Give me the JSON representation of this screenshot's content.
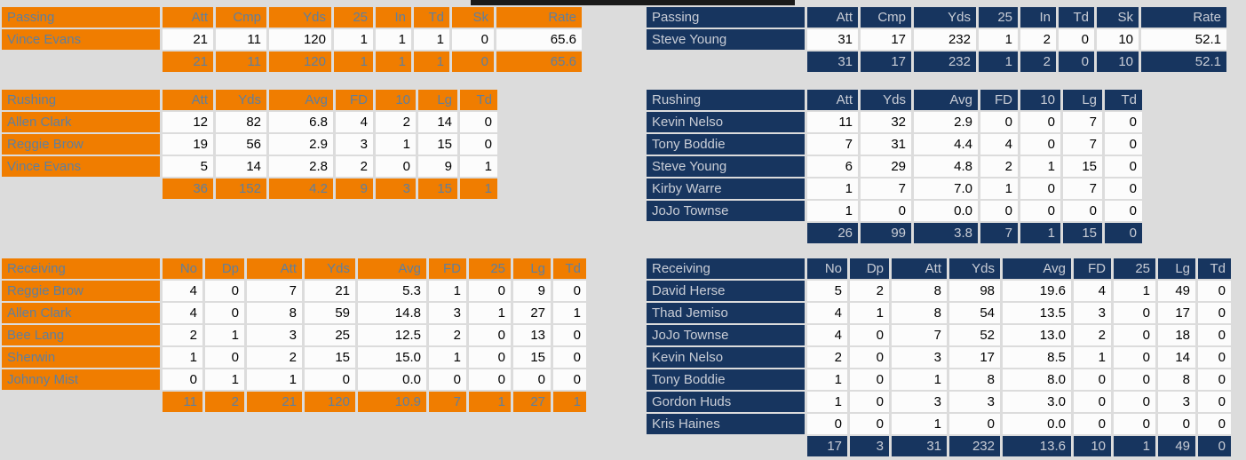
{
  "page": {
    "background_color": "#dcdcdc",
    "top_bar_color": "#1a1a1a",
    "data_cell_color": "#fcfcfc",
    "data_text_color": "#000000"
  },
  "teams": [
    {
      "side": "left",
      "colors": {
        "primary": "#f07d00",
        "label_text": "#5f7f9e"
      },
      "passing": {
        "label": "Passing",
        "columns": [
          "Att",
          "Cmp",
          "Yds",
          "25",
          "In",
          "Td",
          "Sk",
          "Rate"
        ],
        "rows": [
          {
            "name": "Vince Evans",
            "values": [
              "21",
              "11",
              "120",
              "1",
              "1",
              "1",
              "0",
              "65.6"
            ]
          }
        ],
        "totals": [
          "21",
          "11",
          "120",
          "1",
          "1",
          "1",
          "0",
          "65.6"
        ]
      },
      "rushing": {
        "label": "Rushing",
        "columns": [
          "Att",
          "Yds",
          "Avg",
          "FD",
          "10",
          "Lg",
          "Td"
        ],
        "rows": [
          {
            "name": "Allen Clark",
            "values": [
              "12",
              "82",
              "6.8",
              "4",
              "2",
              "14",
              "0"
            ]
          },
          {
            "name": "Reggie Brow",
            "values": [
              "19",
              "56",
              "2.9",
              "3",
              "1",
              "15",
              "0"
            ]
          },
          {
            "name": "Vince Evans",
            "values": [
              "5",
              "14",
              "2.8",
              "2",
              "0",
              "9",
              "1"
            ]
          }
        ],
        "totals": [
          "36",
          "152",
          "4.2",
          "9",
          "3",
          "15",
          "1"
        ]
      },
      "receiving": {
        "label": "Receiving",
        "columns": [
          "No",
          "Dp",
          "Att",
          "Yds",
          "Avg",
          "FD",
          "25",
          "Lg",
          "Td"
        ],
        "rows": [
          {
            "name": "Reggie Brow",
            "values": [
              "4",
              "0",
              "7",
              "21",
              "5.3",
              "1",
              "0",
              "9",
              "0"
            ]
          },
          {
            "name": "Allen Clark",
            "values": [
              "4",
              "0",
              "8",
              "59",
              "14.8",
              "3",
              "1",
              "27",
              "1"
            ]
          },
          {
            "name": "Bee Lang",
            "values": [
              "2",
              "1",
              "3",
              "25",
              "12.5",
              "2",
              "0",
              "13",
              "0"
            ]
          },
          {
            "name": "Sherwin",
            "values": [
              "1",
              "0",
              "2",
              "15",
              "15.0",
              "1",
              "0",
              "15",
              "0"
            ]
          },
          {
            "name": "Johnny Mist",
            "values": [
              "0",
              "1",
              "1",
              "0",
              "0.0",
              "0",
              "0",
              "0",
              "0"
            ]
          }
        ],
        "totals": [
          "11",
          "2",
          "21",
          "120",
          "10.9",
          "7",
          "1",
          "27",
          "1"
        ]
      }
    },
    {
      "side": "right",
      "colors": {
        "primary": "#17355f",
        "label_text": "#c9cdd6"
      },
      "passing": {
        "label": "Passing",
        "columns": [
          "Att",
          "Cmp",
          "Yds",
          "25",
          "In",
          "Td",
          "Sk",
          "Rate"
        ],
        "rows": [
          {
            "name": "Steve Young",
            "values": [
              "31",
              "17",
              "232",
              "1",
              "2",
              "0",
              "10",
              "52.1"
            ]
          }
        ],
        "totals": [
          "31",
          "17",
          "232",
          "1",
          "2",
          "0",
          "10",
          "52.1"
        ]
      },
      "rushing": {
        "label": "Rushing",
        "columns": [
          "Att",
          "Yds",
          "Avg",
          "FD",
          "10",
          "Lg",
          "Td"
        ],
        "rows": [
          {
            "name": "Kevin Nelso",
            "values": [
              "11",
              "32",
              "2.9",
              "0",
              "0",
              "7",
              "0"
            ]
          },
          {
            "name": "Tony Boddie",
            "values": [
              "7",
              "31",
              "4.4",
              "4",
              "0",
              "7",
              "0"
            ]
          },
          {
            "name": "Steve Young",
            "values": [
              "6",
              "29",
              "4.8",
              "2",
              "1",
              "15",
              "0"
            ]
          },
          {
            "name": "Kirby Warre",
            "values": [
              "1",
              "7",
              "7.0",
              "1",
              "0",
              "7",
              "0"
            ]
          },
          {
            "name": "JoJo Townse",
            "values": [
              "1",
              "0",
              "0.0",
              "0",
              "0",
              "0",
              "0"
            ]
          }
        ],
        "totals": [
          "26",
          "99",
          "3.8",
          "7",
          "1",
          "15",
          "0"
        ]
      },
      "receiving": {
        "label": "Receiving",
        "columns": [
          "No",
          "Dp",
          "Att",
          "Yds",
          "Avg",
          "FD",
          "25",
          "Lg",
          "Td"
        ],
        "rows": [
          {
            "name": "David Herse",
            "values": [
              "5",
              "2",
              "8",
              "98",
              "19.6",
              "4",
              "1",
              "49",
              "0"
            ]
          },
          {
            "name": "Thad Jemiso",
            "values": [
              "4",
              "1",
              "8",
              "54",
              "13.5",
              "3",
              "0",
              "17",
              "0"
            ]
          },
          {
            "name": "JoJo Townse",
            "values": [
              "4",
              "0",
              "7",
              "52",
              "13.0",
              "2",
              "0",
              "18",
              "0"
            ]
          },
          {
            "name": "Kevin Nelso",
            "values": [
              "2",
              "0",
              "3",
              "17",
              "8.5",
              "1",
              "0",
              "14",
              "0"
            ]
          },
          {
            "name": "Tony Boddie",
            "values": [
              "1",
              "0",
              "1",
              "8",
              "8.0",
              "0",
              "0",
              "8",
              "0"
            ]
          },
          {
            "name": "Gordon Huds",
            "values": [
              "1",
              "0",
              "3",
              "3",
              "3.0",
              "0",
              "0",
              "3",
              "0"
            ]
          },
          {
            "name": "Kris Haines",
            "values": [
              "0",
              "0",
              "1",
              "0",
              "0.0",
              "0",
              "0",
              "0",
              "0"
            ]
          }
        ],
        "totals": [
          "17",
          "3",
          "31",
          "232",
          "13.6",
          "10",
          "1",
          "49",
          "0"
        ]
      }
    }
  ]
}
